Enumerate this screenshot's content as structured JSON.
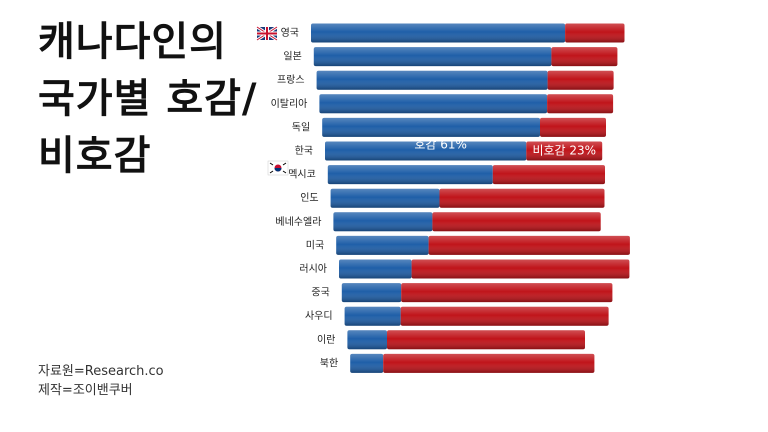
{
  "chart_data": {
    "type": "stacked-bar-horizontal",
    "title": "캐나다인의 국가별 호감/비호감",
    "source": "자료원=Research.co",
    "credit": "제작=조이밴쿠버",
    "categories": [
      "영국",
      "일본",
      "프랑스",
      "이탈리아",
      "독일",
      "한국",
      "멕시코",
      "인도",
      "베네수엘라",
      "미국",
      "러시아",
      "중국",
      "사우디",
      "이란",
      "북한"
    ],
    "series": [
      {
        "color": "#1f5fa8",
        "values": [
          77,
          72,
          70,
          69,
          66,
          61,
          50,
          33,
          30,
          28,
          22,
          18,
          17,
          12,
          10
        ],
        "value_labels": [
          null,
          null,
          null,
          null,
          null,
          "호감 61%",
          null,
          null,
          null,
          null,
          null,
          null,
          null,
          null,
          null
        ]
      },
      {
        "color": "#c0141a",
        "values": [
          18,
          20,
          20,
          20,
          20,
          23,
          34,
          50,
          51,
          61,
          66,
          64,
          63,
          60,
          64
        ],
        "value_labels": [
          null,
          null,
          null,
          null,
          null,
          "비호감 23%",
          null,
          null,
          null,
          null,
          null,
          null,
          null,
          null,
          null
        ]
      }
    ]
  }
}
